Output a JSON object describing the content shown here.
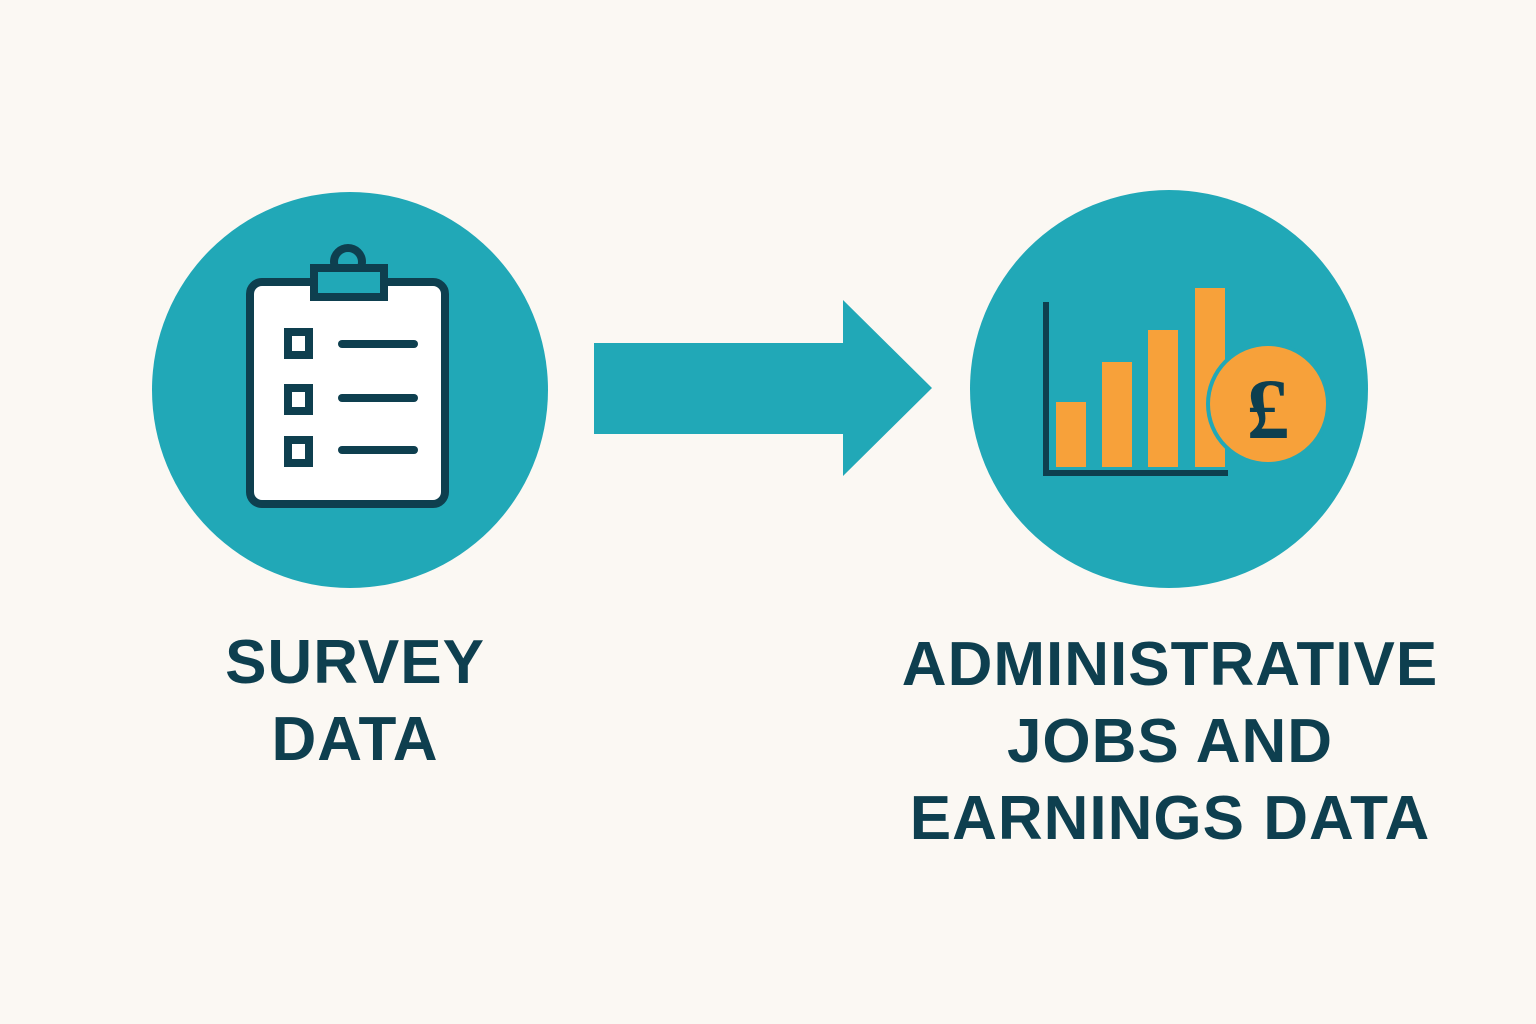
{
  "colors": {
    "background": "#FBF8F3",
    "teal": "#21A8B7",
    "navy": "#0E3F4F",
    "orange": "#F7A13A",
    "white": "#FFFFFF"
  },
  "nodes": [
    {
      "id": "survey",
      "icon": "clipboard-checklist-icon",
      "label": "SURVEY\nDATA"
    },
    {
      "id": "admin",
      "icon": "bar-chart-pound-coin-icon",
      "label": "ADMINISTRATIVE\nJOBS AND\nEARNINGS DATA",
      "coin_symbol": "£"
    }
  ],
  "edges": [
    {
      "from": "survey",
      "to": "admin",
      "icon": "right-arrow-icon"
    }
  ]
}
